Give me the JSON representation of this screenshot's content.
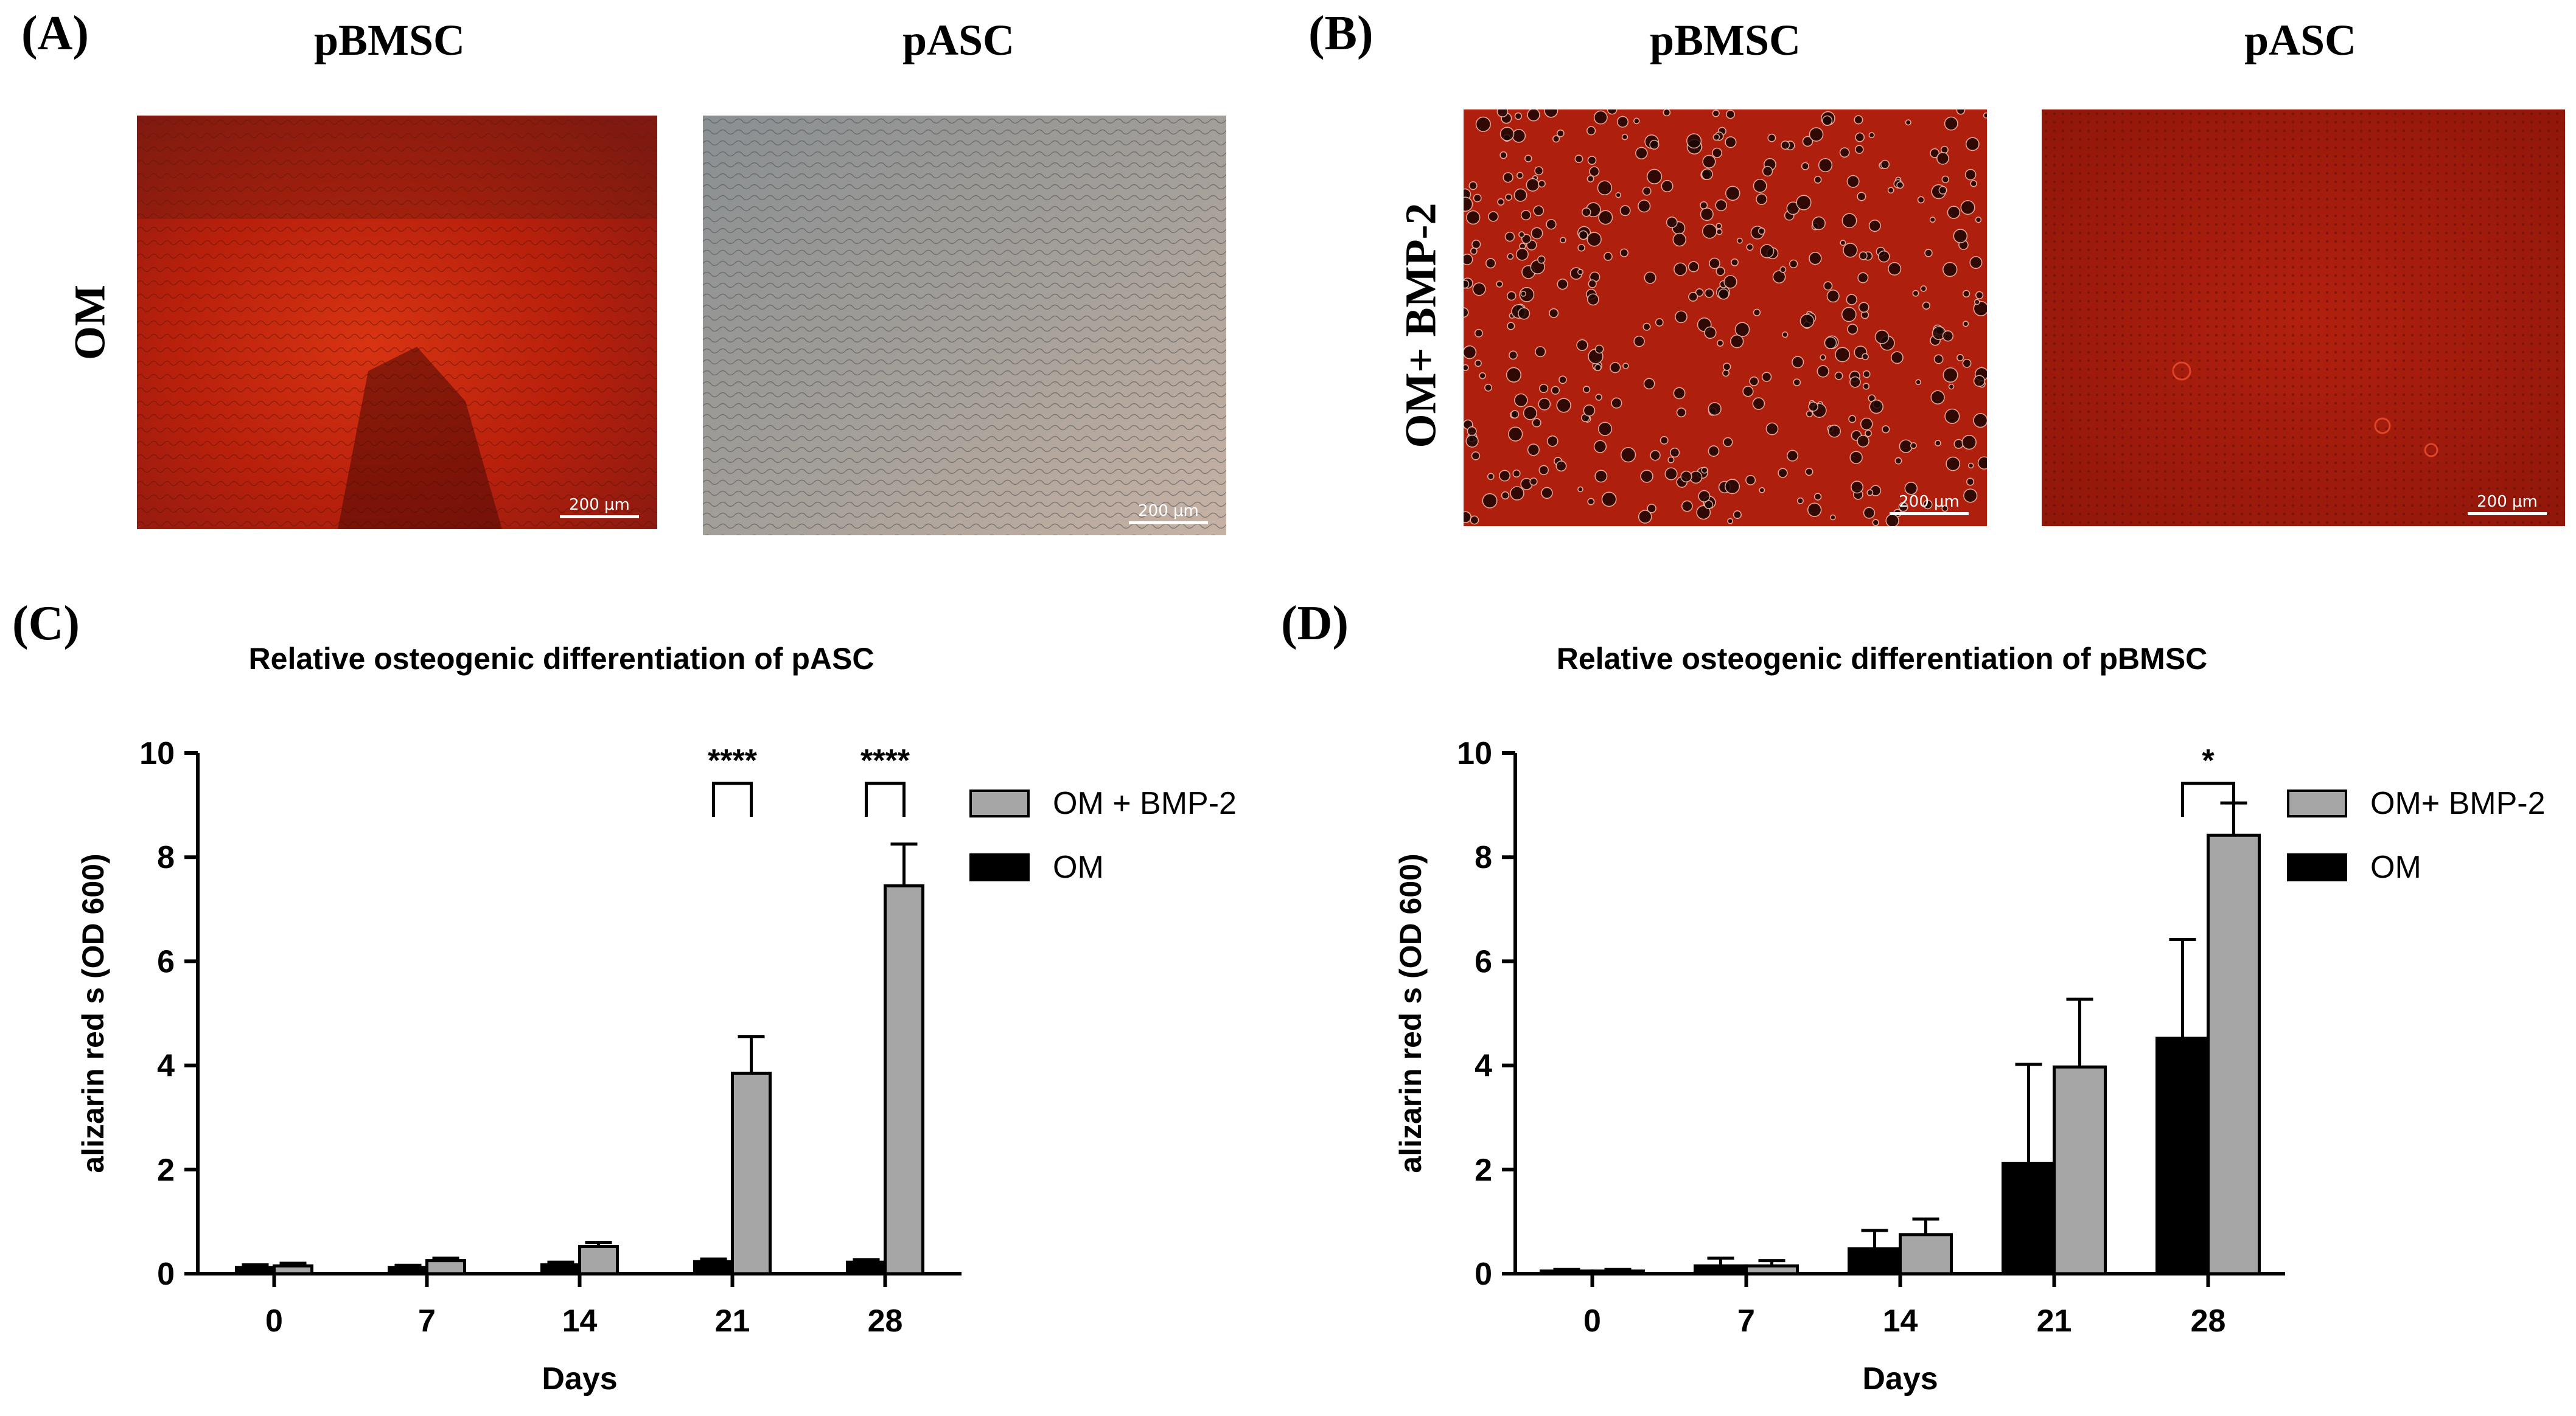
{
  "panels": {
    "A": {
      "letter": "(A)",
      "columns": [
        "pBMSC",
        "pASC"
      ],
      "row_label": "OM",
      "images": [
        {
          "label": "pBMSC OM alizarin red stain",
          "scale": "200 μm",
          "style": "red-confluent"
        },
        {
          "label": "pASC OM alizarin red stain",
          "scale": "200 μm",
          "style": "gray-unstained"
        }
      ]
    },
    "B": {
      "letter": "(B)",
      "columns": [
        "pBMSC",
        "pASC"
      ],
      "row_label": "OM+ BMP-2",
      "images": [
        {
          "label": "pBMSC OM+BMP-2 alizarin red stain",
          "scale": "200 μm",
          "style": "red-nodules"
        },
        {
          "label": "pASC OM+BMP-2 alizarin red stain",
          "scale": "200 μm",
          "style": "red-dense"
        }
      ]
    },
    "C": {
      "letter": "(C)"
    },
    "D": {
      "letter": "(D)"
    }
  },
  "colors": {
    "om": "#000000",
    "bmp2": "#a6a6a6",
    "stain_red": "#c4200f",
    "stain_dark": "#5a0c05"
  },
  "chart_data": [
    {
      "type": "bar",
      "title": "Relative osteogenic differentiation of pASC",
      "xlabel": "Days",
      "ylabel": "alizarin red s (OD 600)",
      "ylim": [
        0,
        10
      ],
      "yticks": [
        0,
        2,
        4,
        6,
        8,
        10
      ],
      "categories": [
        "0",
        "7",
        "14",
        "21",
        "28"
      ],
      "legend_position": "top-right",
      "legend_order": [
        1,
        0
      ],
      "series": [
        {
          "name": "OM",
          "values": [
            0.12,
            0.12,
            0.17,
            0.23,
            0.22
          ],
          "errors": [
            0.05,
            0.04,
            0.05,
            0.05,
            0.05
          ]
        },
        {
          "name": "OM + BMP-2",
          "values": [
            0.15,
            0.25,
            0.52,
            3.85,
            7.45
          ],
          "errors": [
            0.05,
            0.05,
            0.08,
            0.7,
            0.8
          ]
        }
      ],
      "significance": [
        {
          "category_index": 3,
          "label": "****"
        },
        {
          "category_index": 4,
          "label": "****"
        }
      ]
    },
    {
      "type": "bar",
      "title": "Relative osteogenic differentiation of pBMSC",
      "xlabel": "Days",
      "ylabel": "alizarin red s (OD 600)",
      "ylim": [
        0,
        10
      ],
      "yticks": [
        0,
        2,
        4,
        6,
        8,
        10
      ],
      "categories": [
        "0",
        "7",
        "14",
        "21",
        "28"
      ],
      "legend_position": "top-right",
      "legend_order": [
        1,
        0
      ],
      "series": [
        {
          "name": "OM",
          "values": [
            0.05,
            0.15,
            0.48,
            2.12,
            4.52
          ],
          "errors": [
            0.03,
            0.15,
            0.35,
            1.9,
            1.9
          ]
        },
        {
          "name": "OM+ BMP-2",
          "values": [
            0.05,
            0.15,
            0.75,
            3.97,
            8.42
          ],
          "errors": [
            0.03,
            0.1,
            0.3,
            1.3,
            0.62
          ]
        }
      ],
      "significance": [
        {
          "category_index": 4,
          "label": "*"
        }
      ]
    }
  ]
}
